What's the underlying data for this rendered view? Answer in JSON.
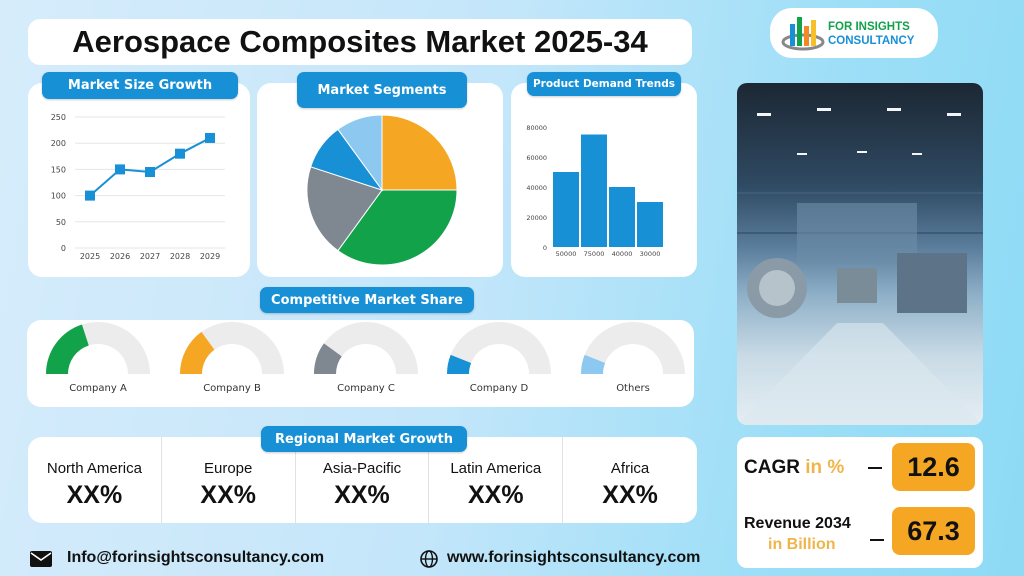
{
  "title": "Aerospace Composites Market 2025-34",
  "logo": {
    "line1": "FOR INSIGHTS",
    "line2": "CONSULTANCY"
  },
  "colors": {
    "primary_blue": "#1790d6",
    "green": "#12a24a",
    "orange": "#f5a623",
    "gray": "#7f8891",
    "light_blue": "#8cc8f0",
    "track": "#ececec"
  },
  "panels": {
    "market_size": "Market Size Growth",
    "segments": "Market Segments",
    "demand": "Product Demand Trends",
    "competitive": "Competitive Market Share",
    "regional": "Regional Market Growth"
  },
  "chart_data": [
    {
      "type": "line",
      "title": "Market Size Growth",
      "categories": [
        "2025",
        "2026",
        "2027",
        "2028",
        "2029"
      ],
      "values": [
        100,
        150,
        145,
        180,
        210
      ],
      "yticks": [
        "0",
        "50",
        "100",
        "150",
        "200",
        "250"
      ],
      "ylim": [
        0,
        250
      ],
      "grid": true
    },
    {
      "type": "pie",
      "title": "Market Segments",
      "values": [
        25,
        35,
        20,
        10,
        10
      ],
      "colors": [
        "#f5a623",
        "#12a24a",
        "#7f8891",
        "#1790d6",
        "#8cc8f0"
      ]
    },
    {
      "type": "bar",
      "title": "Product Demand Trends",
      "categories": [
        "50000",
        "75000",
        "40000",
        "30000"
      ],
      "values": [
        50000,
        75000,
        40000,
        30000
      ],
      "yticks": [
        "0",
        "20000",
        "40000",
        "60000",
        "80000"
      ],
      "ylim": [
        0,
        80000
      ],
      "grid": false
    },
    {
      "type": "gauge",
      "title": "Competitive Market Share",
      "items": [
        {
          "label": "Company A",
          "value": 40,
          "color": "#12a24a"
        },
        {
          "label": "Company B",
          "value": 30,
          "color": "#f5a623"
        },
        {
          "label": "Company C",
          "value": 20,
          "color": "#7f8891"
        },
        {
          "label": "Company D",
          "value": 12,
          "color": "#1790d6"
        },
        {
          "label": "Others",
          "value": 12,
          "color": "#8cc8f0"
        }
      ]
    }
  ],
  "regions": [
    {
      "name": "North America",
      "value": "XX%"
    },
    {
      "name": "Europe",
      "value": "XX%"
    },
    {
      "name": "Asia-Pacific",
      "value": "XX%"
    },
    {
      "name": "Latin America",
      "value": "XX%"
    },
    {
      "name": "Africa",
      "value": "XX%"
    }
  ],
  "kpis": {
    "cagr_label": "CAGR",
    "cagr_unit": "in %",
    "cagr_value": "12.6",
    "revenue_label": "Revenue 2034",
    "revenue_unit": "in Billion",
    "revenue_value": "67.3"
  },
  "footer": {
    "email": "Info@forinsightsconsultancy.com",
    "website": "www.forinsightsconsultancy.com",
    "email_icon": "envelope-icon",
    "web_icon": "globe-icon"
  }
}
